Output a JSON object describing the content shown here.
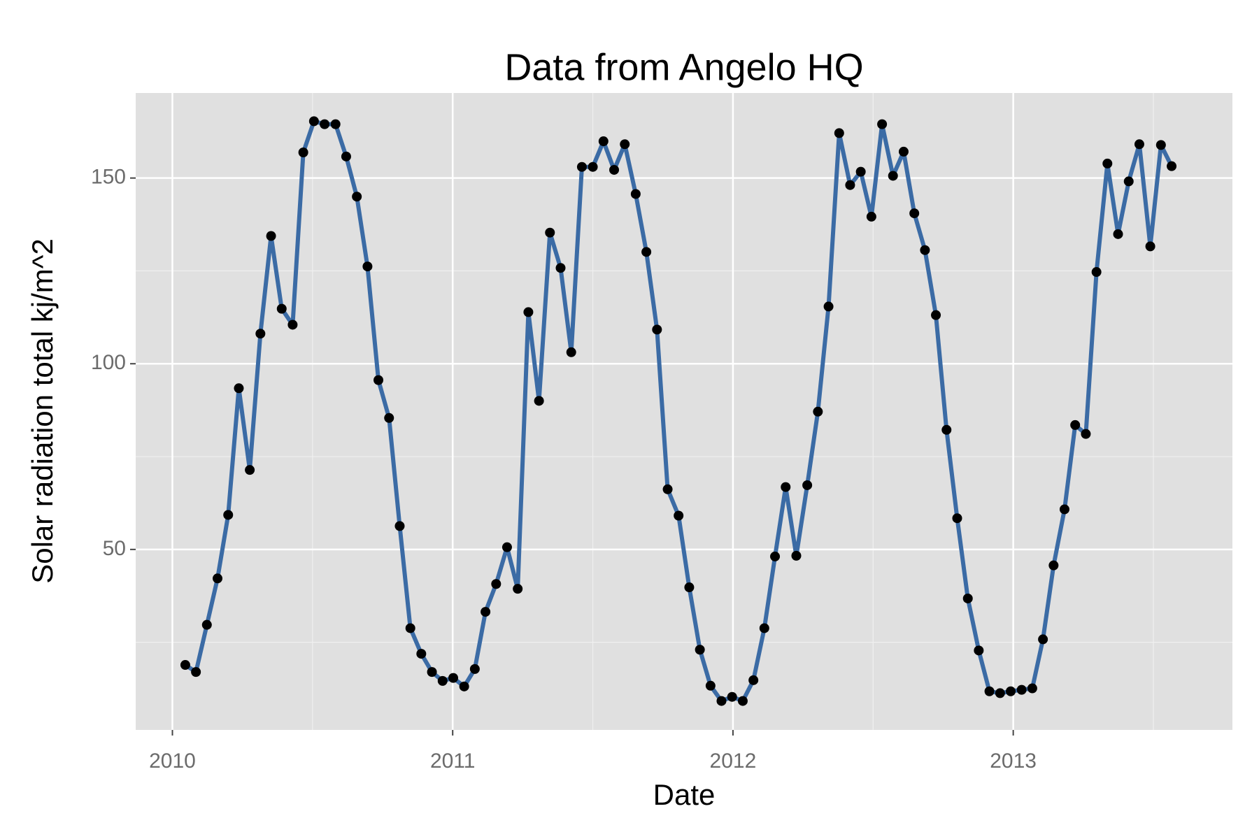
{
  "chart_data": {
    "type": "line",
    "title": "Data from Angelo HQ",
    "x_label": "Date",
    "y_label": "Solar radiation total kj/m^2",
    "x": [
      2010.046,
      2010.084,
      2010.123,
      2010.161,
      2010.199,
      2010.237,
      2010.276,
      2010.314,
      2010.352,
      2010.39,
      2010.429,
      2010.467,
      2010.505,
      2010.543,
      2010.582,
      2010.62,
      2010.658,
      2010.696,
      2010.735,
      2010.773,
      2010.811,
      2010.849,
      2010.888,
      2010.926,
      2010.964,
      2011.002,
      2011.041,
      2011.079,
      2011.117,
      2011.155,
      2011.194,
      2011.232,
      2011.27,
      2011.308,
      2011.347,
      2011.385,
      2011.423,
      2011.461,
      2011.5,
      2011.538,
      2011.576,
      2011.614,
      2011.653,
      2011.691,
      2011.729,
      2011.767,
      2011.806,
      2011.844,
      2011.882,
      2011.92,
      2011.959,
      2011.997,
      2012.035,
      2012.073,
      2012.112,
      2012.15,
      2012.188,
      2012.226,
      2012.265,
      2012.303,
      2012.341,
      2012.379,
      2012.418,
      2012.456,
      2012.494,
      2012.532,
      2012.571,
      2012.609,
      2012.647,
      2012.685,
      2012.724,
      2012.762,
      2012.8,
      2012.838,
      2012.877,
      2012.915,
      2012.953,
      2012.991,
      2013.03,
      2013.068,
      2013.106,
      2013.144,
      2013.183,
      2013.221,
      2013.259,
      2013.297,
      2013.336,
      2013.374,
      2013.412,
      2013.45,
      2013.489,
      2013.527,
      2013.565
    ],
    "series": [
      {
        "name": "Solar radiation",
        "color": "#3b6ba5",
        "point_color": "#000000",
        "values": [
          18.9,
          17.0,
          29.7,
          42.2,
          59.3,
          93.4,
          71.4,
          108.1,
          134.4,
          114.8,
          110.5,
          156.9,
          165.3,
          164.5,
          164.5,
          155.8,
          145.0,
          126.2,
          95.6,
          85.4,
          56.3,
          28.8,
          21.9,
          17.0,
          14.6,
          15.4,
          13.1,
          17.8,
          33.2,
          40.7,
          50.6,
          39.4,
          113.9,
          90.0,
          135.3,
          125.8,
          103.1,
          153.0,
          153.0,
          159.9,
          152.2,
          159.1,
          145.7,
          130.1,
          109.2,
          66.2,
          59.1,
          39.8,
          23.0,
          13.3,
          9.2,
          10.3,
          9.2,
          14.8,
          28.8,
          48.1,
          66.8,
          48.3,
          67.3,
          87.1,
          115.4,
          162.1,
          148.1,
          151.7,
          139.6,
          164.5,
          150.6,
          157.1,
          140.5,
          130.6,
          113.1,
          82.2,
          58.4,
          36.8,
          22.8,
          11.8,
          11.3,
          11.8,
          12.2,
          12.6,
          25.8,
          45.7,
          60.8,
          83.5,
          81.1,
          124.7,
          153.9,
          134.9,
          149.1,
          159.1,
          131.6,
          158.9,
          153.2
        ]
      }
    ],
    "xlim": [
      2009.869,
      2013.782
    ],
    "xticks": [
      2010,
      2011,
      2012,
      2013
    ],
    "ylim": [
      1.4,
      172.9
    ],
    "yticks": [
      50,
      100,
      150
    ],
    "grid": true,
    "panel_color": "#e0e0e0"
  }
}
